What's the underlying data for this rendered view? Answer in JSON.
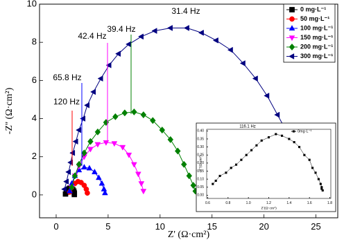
{
  "chart_data": [
    {
      "type": "line",
      "x_label": "Z' (Ω·cm²)",
      "y_label": "-Z'' (Ω·cm²)",
      "xlim": [
        -1.6,
        27.1
      ],
      "ylim": [
        -1.2,
        10
      ],
      "xticks": [
        0,
        5,
        10,
        15,
        20,
        25
      ],
      "yticks": [
        0,
        2,
        4,
        6,
        8,
        10
      ],
      "legend": "upper right",
      "annotations": [
        "120 Hz",
        "65.8 Hz",
        "42.4 Hz",
        "39.4 Hz",
        "31.4 Hz"
      ],
      "series": [
        {
          "name": "0 mg·L⁻¹",
          "color": "#000000",
          "marker": "square",
          "x": [
            0.9,
            1.0,
            1.1,
            1.2,
            1.3,
            1.4,
            1.5,
            1.6,
            1.7,
            1.75,
            1.75
          ],
          "values": [
            0.05,
            0.15,
            0.25,
            0.3,
            0.35,
            0.35,
            0.33,
            0.28,
            0.2,
            0.1,
            0.02
          ]
        },
        {
          "name": "50 mg·L⁻¹",
          "color": "#ff0000",
          "marker": "circle",
          "x": [
            1.3,
            1.5,
            1.8,
            2.1,
            2.4,
            2.7,
            2.9,
            3.0
          ],
          "values": [
            0.15,
            0.4,
            0.6,
            0.7,
            0.65,
            0.5,
            0.3,
            0.1
          ]
        },
        {
          "name": "100 mg·L⁻¹",
          "color": "#0000ff",
          "marker": "triangle-up",
          "x": [
            1.3,
            1.5,
            1.8,
            2.2,
            2.7,
            3.2,
            3.7,
            4.1,
            4.4,
            4.6,
            4.7
          ],
          "values": [
            0.2,
            0.6,
            1.0,
            1.3,
            1.45,
            1.4,
            1.2,
            0.9,
            0.6,
            0.3,
            0.1
          ]
        },
        {
          "name": "150 mg·L⁻¹",
          "color": "#ff00ff",
          "marker": "triangle-down",
          "x": [
            1.5,
            1.8,
            2.2,
            2.7,
            3.3,
            4.0,
            4.8,
            5.6,
            6.4,
            7.0,
            7.5,
            7.9,
            8.2,
            8.4
          ],
          "values": [
            0.4,
            1.0,
            1.5,
            2.0,
            2.4,
            2.65,
            2.75,
            2.7,
            2.5,
            2.1,
            1.6,
            1.1,
            0.6,
            0.2
          ]
        },
        {
          "name": "200 mg·L⁻¹",
          "color": "#008000",
          "marker": "diamond",
          "x": [
            1.5,
            1.8,
            2.2,
            2.7,
            3.3,
            4.0,
            4.8,
            5.7,
            6.6,
            7.5,
            8.4,
            9.3,
            10.2,
            11.0,
            11.7,
            12.3,
            12.8,
            13.2,
            13.4
          ],
          "values": [
            0.4,
            1.0,
            1.6,
            2.2,
            2.8,
            3.3,
            3.8,
            4.1,
            4.3,
            4.35,
            4.2,
            3.9,
            3.4,
            2.9,
            2.3,
            1.6,
            1.0,
            0.5,
            0.2
          ]
        },
        {
          "name": "300 mg·L⁻¹",
          "color": "#000080",
          "marker": "triangle-left",
          "x": [
            0.8,
            1.0,
            1.2,
            1.4,
            1.6,
            1.9,
            2.2,
            2.6,
            3.0,
            3.6,
            4.3,
            5.1,
            6.0,
            7.0,
            8.2,
            9.5,
            11.0,
            12.6,
            14.0,
            15.4,
            16.8,
            18.0,
            19.2,
            20.3,
            21.3,
            22.2,
            23.0,
            23.5,
            23.8
          ],
          "values": [
            0.3,
            0.7,
            1.2,
            1.7,
            2.2,
            2.8,
            3.4,
            4.0,
            4.7,
            5.4,
            6.1,
            6.8,
            7.4,
            7.9,
            8.3,
            8.6,
            8.75,
            8.75,
            8.5,
            8.1,
            7.6,
            6.9,
            6.1,
            5.2,
            4.2,
            3.3,
            2.4,
            1.9,
            1.4
          ]
        }
      ]
    },
    {
      "type": "line",
      "x_label": "Z'(Ω·cm²)",
      "y_label": "-Z''(Ω·cm²)",
      "xlim": [
        0.59,
        1.81
      ],
      "ylim": [
        -0.02,
        0.41
      ],
      "xticks": [
        {
          "value": 0.6,
          "label": "0.6"
        },
        {
          "value": 0.8,
          "label": "0.8"
        },
        {
          "value": 1.0,
          "label": "1.0"
        },
        {
          "value": 1.2,
          "label": "1.2"
        },
        {
          "value": 1.4,
          "label": "1.4"
        },
        {
          "value": 1.6,
          "label": "1.6"
        },
        {
          "value": 1.8,
          "label": "1.8"
        }
      ],
      "yticks": [
        {
          "value": 0,
          "label": "0.00"
        },
        {
          "value": 0.05,
          "label": "0.05"
        },
        {
          "value": 0.1,
          "label": "0.10"
        },
        {
          "value": 0.15,
          "label": "0.15"
        },
        {
          "value": 0.2,
          "label": "0.20"
        },
        {
          "value": 0.25,
          "label": "0.25"
        },
        {
          "value": 0.3,
          "label": "0.30"
        },
        {
          "value": 0.35,
          "label": "0.35"
        },
        {
          "value": 0.4,
          "label": "0.40"
        }
      ],
      "legend": "upper right",
      "annotations": [
        "116.1 Hz"
      ],
      "series": [
        {
          "name": "0mg·L⁻¹",
          "color": "#000000",
          "marker": "square",
          "x": [
            0.65,
            0.68,
            0.72,
            0.78,
            0.83,
            0.88,
            0.93,
            0.98,
            1.03,
            1.08,
            1.13,
            1.2,
            1.27,
            1.33,
            1.4,
            1.45,
            1.5,
            1.55,
            1.6,
            1.63,
            1.66,
            1.69,
            1.71,
            1.72,
            1.72,
            1.73
          ],
          "values": [
            0.07,
            0.09,
            0.12,
            0.14,
            0.17,
            0.19,
            0.22,
            0.25,
            0.28,
            0.31,
            0.34,
            0.36,
            0.38,
            0.37,
            0.35,
            0.33,
            0.3,
            0.25,
            0.22,
            0.17,
            0.14,
            0.1,
            0.07,
            0.05,
            0.04,
            0.03
          ]
        }
      ]
    }
  ]
}
